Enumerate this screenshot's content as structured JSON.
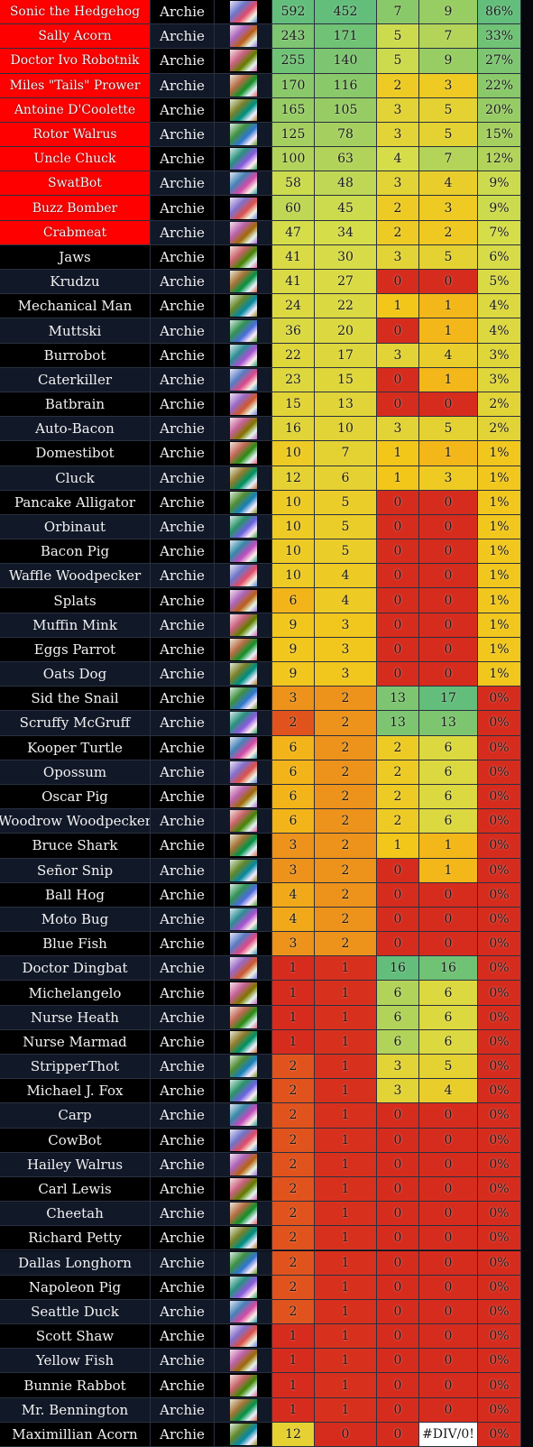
{
  "table": {
    "rows": [
      [
        "Sonic the Hedgehog",
        "Archie",
        592,
        452,
        7,
        9,
        "86%"
      ],
      [
        "Sally Acorn",
        "Archie",
        243,
        171,
        5,
        7,
        "33%"
      ],
      [
        "Doctor Ivo Robotnik",
        "Archie",
        255,
        140,
        5,
        9,
        "27%"
      ],
      [
        "Miles \"Tails\" Prower",
        "Archie",
        170,
        116,
        2,
        3,
        "22%"
      ],
      [
        "Antoine D'Coolette",
        "Archie",
        165,
        105,
        3,
        5,
        "20%"
      ],
      [
        "Rotor Walrus",
        "Archie",
        125,
        78,
        3,
        5,
        "15%"
      ],
      [
        "Uncle Chuck",
        "Archie",
        100,
        63,
        4,
        7,
        "12%"
      ],
      [
        "SwatBot",
        "Archie",
        58,
        48,
        3,
        4,
        "9%"
      ],
      [
        "Buzz Bomber",
        "Archie",
        60,
        45,
        2,
        3,
        "9%"
      ],
      [
        "Crabmeat",
        "Archie",
        47,
        34,
        2,
        2,
        "7%"
      ],
      [
        "Jaws",
        "Archie",
        41,
        30,
        3,
        5,
        "6%"
      ],
      [
        "Krudzu",
        "Archie",
        41,
        27,
        0,
        0,
        "5%"
      ],
      [
        "Mechanical Man",
        "Archie",
        24,
        22,
        1,
        1,
        "4%"
      ],
      [
        "Muttski",
        "Archie",
        36,
        20,
        0,
        1,
        "4%"
      ],
      [
        "Burrobot",
        "Archie",
        22,
        17,
        3,
        4,
        "3%"
      ],
      [
        "Caterkiller",
        "Archie",
        23,
        15,
        0,
        1,
        "3%"
      ],
      [
        "Batbrain",
        "Archie",
        15,
        13,
        0,
        0,
        "2%"
      ],
      [
        "Auto-Bacon",
        "Archie",
        16,
        10,
        3,
        5,
        "2%"
      ],
      [
        "Domestibot",
        "Archie",
        10,
        7,
        1,
        1,
        "1%"
      ],
      [
        "Cluck",
        "Archie",
        12,
        6,
        1,
        3,
        "1%"
      ],
      [
        "Pancake Alligator",
        "Archie",
        10,
        5,
        0,
        0,
        "1%"
      ],
      [
        "Orbinaut",
        "Archie",
        10,
        5,
        0,
        0,
        "1%"
      ],
      [
        "Bacon Pig",
        "Archie",
        10,
        5,
        0,
        0,
        "1%"
      ],
      [
        "Waffle Woodpecker",
        "Archie",
        10,
        4,
        0,
        0,
        "1%"
      ],
      [
        "Splats",
        "Archie",
        6,
        4,
        0,
        0,
        "1%"
      ],
      [
        "Muffin Mink",
        "Archie",
        9,
        3,
        0,
        0,
        "1%"
      ],
      [
        "Eggs Parrot",
        "Archie",
        9,
        3,
        0,
        0,
        "1%"
      ],
      [
        "Oats Dog",
        "Archie",
        9,
        3,
        0,
        0,
        "1%"
      ],
      [
        "Sid the Snail",
        "Archie",
        3,
        2,
        13,
        17,
        "0%"
      ],
      [
        "Scruffy McGruff",
        "Archie",
        2,
        2,
        13,
        13,
        "0%"
      ],
      [
        "Kooper Turtle",
        "Archie",
        6,
        2,
        2,
        6,
        "0%"
      ],
      [
        "Opossum",
        "Archie",
        6,
        2,
        2,
        6,
        "0%"
      ],
      [
        "Oscar Pig",
        "Archie",
        6,
        2,
        2,
        6,
        "0%"
      ],
      [
        "Woodrow Woodpecker",
        "Archie",
        6,
        2,
        2,
        6,
        "0%"
      ],
      [
        "Bruce Shark",
        "Archie",
        3,
        2,
        1,
        1,
        "0%"
      ],
      [
        "Señor Snip",
        "Archie",
        3,
        2,
        0,
        1,
        "0%"
      ],
      [
        "Ball Hog",
        "Archie",
        4,
        2,
        0,
        0,
        "0%"
      ],
      [
        "Moto Bug",
        "Archie",
        4,
        2,
        0,
        0,
        "0%"
      ],
      [
        "Blue Fish",
        "Archie",
        3,
        2,
        0,
        0,
        "0%"
      ],
      [
        "Doctor Dingbat",
        "Archie",
        1,
        1,
        16,
        16,
        "0%"
      ],
      [
        "Michelangelo",
        "Archie",
        1,
        1,
        6,
        6,
        "0%"
      ],
      [
        "Nurse Heath",
        "Archie",
        1,
        1,
        6,
        6,
        "0%"
      ],
      [
        "Nurse Marmad",
        "Archie",
        1,
        1,
        6,
        6,
        "0%"
      ],
      [
        "StripperThot",
        "Archie",
        2,
        1,
        3,
        5,
        "0%"
      ],
      [
        "Michael J. Fox",
        "Archie",
        2,
        1,
        3,
        4,
        "0%"
      ],
      [
        "Carp",
        "Archie",
        2,
        1,
        0,
        0,
        "0%"
      ],
      [
        "CowBot",
        "Archie",
        2,
        1,
        0,
        0,
        "0%"
      ],
      [
        "Hailey Walrus",
        "Archie",
        2,
        1,
        0,
        0,
        "0%"
      ],
      [
        "Carl Lewis",
        "Archie",
        2,
        1,
        0,
        0,
        "0%"
      ],
      [
        "Cheetah",
        "Archie",
        2,
        1,
        0,
        0,
        "0%"
      ],
      [
        "Richard Petty",
        "Archie",
        2,
        1,
        0,
        0,
        "0%"
      ],
      [
        "Dallas Longhorn",
        "Archie",
        2,
        1,
        0,
        0,
        "0%"
      ],
      [
        "Napoleon Pig",
        "Archie",
        2,
        1,
        0,
        0,
        "0%"
      ],
      [
        "Seattle Duck",
        "Archie",
        2,
        1,
        0,
        0,
        "0%"
      ],
      [
        "Scott Shaw",
        "Archie",
        1,
        1,
        0,
        0,
        "0%"
      ],
      [
        "Yellow Fish",
        "Archie",
        1,
        1,
        0,
        0,
        "0%"
      ],
      [
        "Bunnie Rabbot",
        "Archie",
        1,
        1,
        0,
        0,
        "0%"
      ],
      [
        "Mr. Bennington",
        "Archie",
        1,
        1,
        0,
        0,
        "0%"
      ],
      [
        "Maximillian Acorn",
        "Archie",
        12,
        0,
        0,
        "#DIV/0!",
        "0%"
      ]
    ]
  }
}
